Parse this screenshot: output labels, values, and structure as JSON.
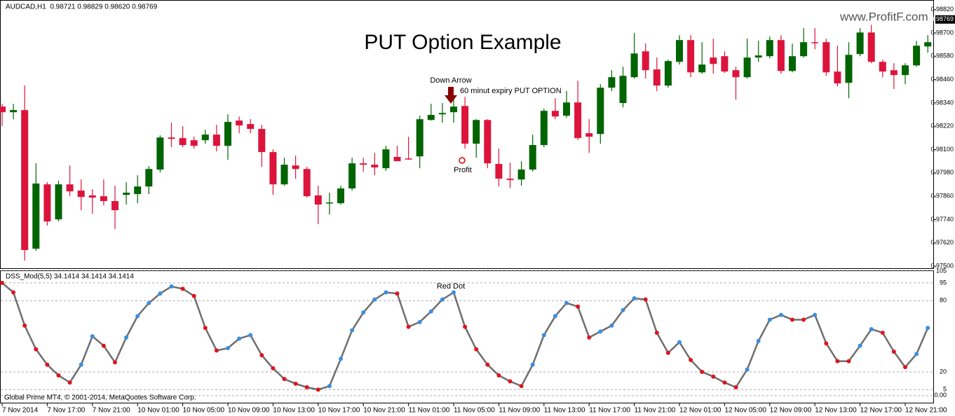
{
  "header": "AUDCAD,H1  0.98721 0.98829 0.98620 0.98769",
  "watermark": "www.ProfitF.com",
  "footer": "Global Prime MT4, © 2001-2014, MetaQuotes Software Corp.",
  "chart_data": [
    {
      "type": "candlestick",
      "title": "PUT Option Example",
      "categories": [
        "7 Nov 2014",
        null,
        null,
        null,
        "7 Nov 17:00",
        null,
        null,
        null,
        "7 Nov 21:00",
        null,
        null,
        null,
        "10 Nov 01:00",
        null,
        null,
        null,
        "10 Nov 05:00",
        null,
        null,
        null,
        "10 Nov 09:00",
        null,
        null,
        null,
        "10 Nov 13:00",
        null,
        null,
        null,
        "10 Nov 17:00",
        null,
        null,
        null,
        "10 Nov 21:00",
        null,
        null,
        null,
        "11 Nov 01:00",
        null,
        null,
        null,
        "11 Nov 05:00",
        null,
        null,
        null,
        "11 Nov 09:00",
        null,
        null,
        null,
        "11 Nov 13:00",
        null,
        null,
        null,
        "11 Nov 17:00",
        null,
        null,
        null,
        "11 Nov 21:00",
        null,
        null,
        null,
        "12 Nov 01:00",
        null,
        null,
        null,
        "12 Nov 05:00",
        null,
        null,
        null,
        "12 Nov 09:00",
        null,
        null,
        null,
        "12 Nov 13:00",
        null,
        null,
        null,
        "12 Nov 17:00",
        null,
        null,
        null,
        "12 Nov 21:00",
        null,
        null
      ],
      "open": [
        0.98321,
        0.98292,
        0.98303,
        0.9759,
        0.97921,
        0.97741,
        0.97921,
        0.97889,
        0.97864,
        0.9786,
        0.97835,
        0.97867,
        0.97871,
        0.9791,
        0.97997,
        0.98162,
        0.98159,
        0.98148,
        0.98148,
        0.98177,
        0.98119,
        0.98249,
        0.98231,
        0.98206,
        0.98087,
        0.97921,
        0.98018,
        0.98,
        0.97864,
        0.97824,
        0.97824,
        0.979,
        0.98029,
        0.98022,
        0.98004,
        0.98062,
        0.98054,
        0.98065,
        0.98252,
        0.98281,
        0.98292,
        0.98324,
        0.9813,
        0.98252,
        0.98026,
        0.9795,
        0.97946,
        0.97997,
        0.98123,
        0.98299,
        0.98274,
        0.98342,
        0.98184,
        0.9818,
        0.98418,
        0.98339,
        0.98472,
        0.98605,
        0.98512,
        0.98429,
        0.98551,
        0.98663,
        0.98497,
        0.98573,
        0.9858,
        0.98508,
        0.98472,
        0.98573,
        0.9858,
        0.98663,
        0.98504,
        0.9858,
        0.98652,
        0.98652,
        0.98501,
        0.98443,
        0.98591,
        0.98702,
        0.98551,
        0.98508,
        0.98483,
        0.98533,
        0.9863
      ],
      "high": [
        0.98335,
        0.98335,
        0.98429,
        0.98029,
        0.97932,
        0.97939,
        0.98018,
        0.97946,
        0.97896,
        0.97946,
        0.97914,
        0.97932,
        0.97968,
        0.98015,
        0.98173,
        0.98238,
        0.9822,
        0.98166,
        0.98202,
        0.98227,
        0.98281,
        0.9827,
        0.98256,
        0.98227,
        0.98101,
        0.98058,
        0.98069,
        0.98011,
        0.97914,
        0.97878,
        0.97914,
        0.98058,
        0.98058,
        0.98083,
        0.98119,
        0.98119,
        0.98166,
        0.98274,
        0.98335,
        0.98339,
        0.98364,
        0.98371,
        0.98256,
        0.98256,
        0.98105,
        0.98033,
        0.9804,
        0.98177,
        0.9831,
        0.98364,
        0.984,
        0.98454,
        0.98256,
        0.98436,
        0.98508,
        0.98526,
        0.98699,
        0.98645,
        0.98573,
        0.98562,
        0.98688,
        0.98688,
        0.98652,
        0.9867,
        0.98605,
        0.98526,
        0.9867,
        0.98659,
        0.98681,
        0.98688,
        0.98645,
        0.98724,
        0.98724,
        0.9867,
        0.98634,
        0.98652,
        0.98724,
        0.98742,
        0.98562,
        0.98544,
        0.98544,
        0.98659,
        0.98688
      ],
      "low": [
        0.9822,
        0.98256,
        0.97529,
        0.97579,
        0.97709,
        0.9773,
        0.9786,
        0.97788,
        0.9777,
        0.97813,
        0.97691,
        0.97817,
        0.97824,
        0.97871,
        0.97982,
        0.98112,
        0.98112,
        0.98105,
        0.9813,
        0.9809,
        0.98047,
        0.98184,
        0.98184,
        0.98011,
        0.97867,
        0.97914,
        0.9795,
        0.97853,
        0.97716,
        0.97766,
        0.97817,
        0.97889,
        0.97986,
        0.97968,
        0.9799,
        0.9804,
        0.98047,
        0.98004,
        0.98249,
        0.98238,
        0.98238,
        0.98105,
        0.98058,
        0.98004,
        0.9791,
        0.97903,
        0.97914,
        0.97986,
        0.98112,
        0.98256,
        0.98263,
        0.98148,
        0.98083,
        0.9813,
        0.984,
        0.98317,
        0.98465,
        0.98465,
        0.984,
        0.98418,
        0.98537,
        0.98472,
        0.9849,
        0.9849,
        0.98494,
        0.98357,
        0.98465,
        0.98551,
        0.98569,
        0.9849,
        0.98497,
        0.98573,
        0.98616,
        0.98479,
        0.98425,
        0.98364,
        0.9858,
        0.98544,
        0.98472,
        0.98411,
        0.98436,
        0.98526,
        0.98598
      ],
      "close": [
        0.98292,
        0.98303,
        0.97583,
        0.97925,
        0.9773,
        0.97921,
        0.97885,
        0.97856,
        0.97853,
        0.97835,
        0.97788,
        0.97878,
        0.9791,
        0.98,
        0.98162,
        0.98155,
        0.98123,
        0.98119,
        0.98177,
        0.98119,
        0.98242,
        0.98224,
        0.98206,
        0.98087,
        0.97921,
        0.98022,
        0.98,
        0.9786,
        0.97817,
        0.97828,
        0.979,
        0.98029,
        0.98022,
        0.98008,
        0.98101,
        0.9804,
        0.98051,
        0.98256,
        0.98278,
        0.98288,
        0.98321,
        0.9813,
        0.98252,
        0.98029,
        0.9795,
        0.97943,
        0.97997,
        0.98123,
        0.98299,
        0.9827,
        0.98342,
        0.98159,
        0.98166,
        0.98418,
        0.98472,
        0.98479,
        0.98594,
        0.98508,
        0.98429,
        0.98555,
        0.98663,
        0.98497,
        0.98537,
        0.9854,
        0.98501,
        0.98472,
        0.98573,
        0.98584,
        0.98663,
        0.98504,
        0.9858,
        0.98652,
        0.98648,
        0.98497,
        0.9844,
        0.98587,
        0.98702,
        0.98551,
        0.98501,
        0.98483,
        0.98533,
        0.98634,
        0.98652
      ],
      "up_color": "#006400",
      "down_color": "#dc143c",
      "ylim": [
        0.97486,
        0.98869
      ],
      "yticks": [
        {
          "value": 0.9882,
          "label": "0.98820"
        },
        {
          "value": 0.987,
          "label": "0.98700"
        },
        {
          "value": 0.9858,
          "label": "0.98580"
        },
        {
          "value": 0.9846,
          "label": "0.98460"
        },
        {
          "value": 0.9834,
          "label": "0.98340"
        },
        {
          "value": 0.9822,
          "label": "0.98220"
        },
        {
          "value": 0.981,
          "label": "0.98100"
        },
        {
          "value": 0.9798,
          "label": "0.97980"
        },
        {
          "value": 0.9786,
          "label": "0.97860"
        },
        {
          "value": 0.9774,
          "label": "0.97740"
        },
        {
          "value": 0.9762,
          "label": "0.97620"
        },
        {
          "value": 0.975,
          "label": "0.97500"
        }
      ],
      "last_price": {
        "value": 0.98769,
        "label": "0.98769"
      },
      "annotations": [
        "Down Arrow",
        "60 minut expiry PUT OPTION",
        "Profit"
      ]
    },
    {
      "type": "line",
      "title": "DSS_Mod(5,5) 34.1414 34.1414 34.1414",
      "values": [
        95,
        87,
        59,
        39,
        26,
        17,
        11,
        26,
        50,
        42,
        28,
        49,
        67,
        78,
        86,
        92,
        90,
        84,
        57,
        38,
        40,
        48,
        51,
        34,
        23,
        14,
        10,
        7,
        5,
        8,
        31,
        55,
        70,
        81,
        87,
        86,
        58,
        62,
        71,
        81,
        87,
        58,
        39,
        26,
        17,
        12,
        8,
        26,
        51,
        67,
        78,
        75,
        49,
        54,
        59,
        72,
        82,
        81,
        53,
        36,
        45,
        30,
        20,
        16,
        11,
        7,
        22,
        46,
        64,
        68,
        64,
        64,
        68,
        44,
        29,
        29,
        42,
        56,
        53,
        37,
        24,
        35,
        57
      ],
      "line_color": "#6e6e6e",
      "up_color": "#3a8fe0",
      "down_color": "#e0141e",
      "ylim": [
        -6,
        105
      ],
      "yticks": [
        105,
        95,
        80,
        20,
        5,
        {
          "value": 0,
          "label": "0.00"
        }
      ],
      "grid": true,
      "annotations": [
        "Red Dot"
      ]
    }
  ]
}
